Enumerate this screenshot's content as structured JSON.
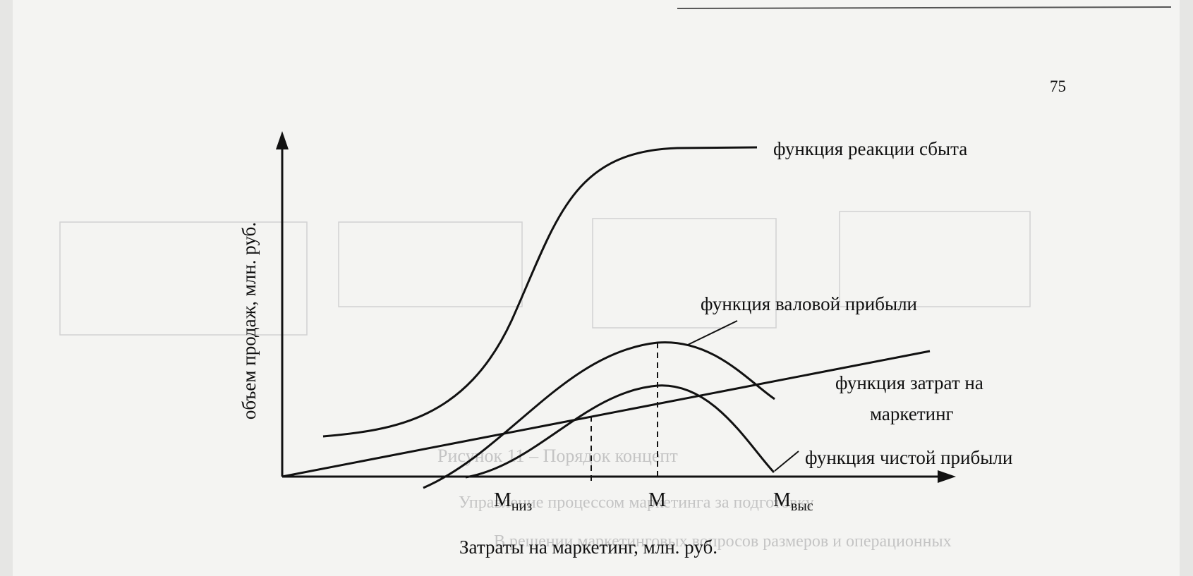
{
  "page_number": "75",
  "figure": {
    "y_axis_label": "объем продаж, млн. руб.",
    "x_axis_label": "Затраты на маркетинг, млн. руб.",
    "curves": {
      "sales_response": "функция реакции сбыта",
      "gross_profit": "функция валовой прибыли",
      "marketing_cost_line1": "функция затрат на",
      "marketing_cost_line2": "маркетинг",
      "net_profit": "функция чистой прибыли"
    },
    "ticks": {
      "m_low_base": "M",
      "m_low_sub": "низ",
      "m": "M",
      "m_high_base": "M",
      "m_high_sub": "выс"
    }
  },
  "bleed_through_text": {
    "line1": "Рисунок 11 – Порядок концепт",
    "line2": "Управление процессом маркетинга за подготовку",
    "line3": "В решении маркетинговых вопросов размеров и операционных"
  }
}
